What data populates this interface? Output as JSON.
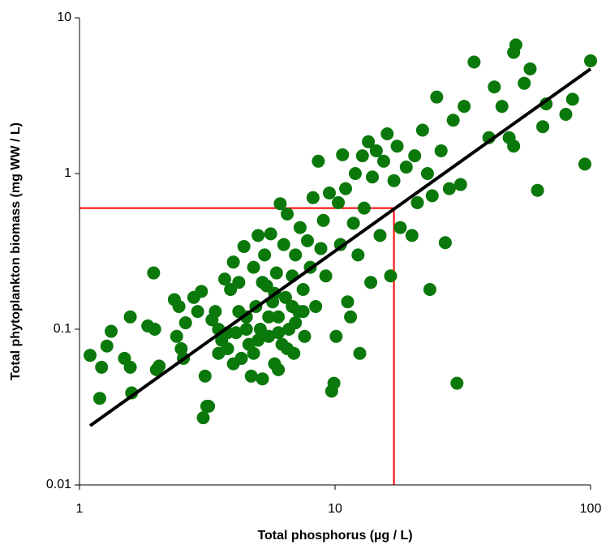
{
  "chart_data": {
    "type": "scatter",
    "x_label": "Total phosphorus (µg / L)",
    "y_label": "Total phytoplankton biomass (mg WW / L)",
    "log_x": true,
    "log_y": true,
    "xlim": [
      1,
      100
    ],
    "ylim": [
      0.01,
      10
    ],
    "xticks": [
      1,
      10,
      100
    ],
    "yticks": [
      0.01,
      0.1,
      1,
      10
    ],
    "color": "#0b780b",
    "x": [
      1.1,
      1.2,
      1.22,
      1.28,
      1.33,
      1.5,
      1.58,
      1.58,
      1.6,
      1.85,
      1.95,
      1.97,
      2.0,
      2.05,
      2.35,
      2.4,
      2.45,
      2.5,
      2.55,
      2.6,
      2.8,
      2.9,
      3.0,
      3.05,
      3.1,
      3.15,
      3.2,
      3.3,
      3.4,
      3.5,
      3.6,
      3.7,
      3.8,
      3.9,
      4.0,
      4.1,
      4.2,
      4.3,
      4.4,
      4.5,
      4.6,
      4.7,
      4.8,
      4.9,
      5.0,
      5.1,
      5.2,
      5.3,
      5.4,
      5.5,
      5.6,
      5.7,
      5.8,
      5.9,
      6.0,
      6.1,
      6.2,
      6.3,
      6.4,
      6.5,
      6.6,
      6.8,
      6.9,
      7.0,
      7.2,
      7.3,
      7.5,
      7.6,
      7.8,
      8.0,
      8.2,
      8.4,
      8.6,
      8.8,
      9.0,
      9.2,
      9.5,
      9.7,
      9.9,
      10.1,
      10.3,
      10.5,
      10.7,
      11.0,
      11.2,
      11.5,
      11.8,
      12.0,
      12.3,
      12.5,
      12.8,
      13.0,
      13.5,
      13.8,
      14.0,
      14.5,
      15.0,
      15.5,
      16.0,
      16.5,
      17.0,
      17.5,
      18.0,
      19.0,
      20.0,
      20.5,
      21.0,
      22.0,
      23.0,
      23.5,
      24.0,
      25.0,
      26.0,
      27.0,
      28.0,
      29.0,
      30.0,
      31.0,
      32.0,
      35.0,
      40.0,
      42.0,
      45.0,
      48.0,
      50.0,
      51.0,
      50.0,
      55.0,
      58.0,
      62.0,
      65.0,
      67.0,
      80.0,
      85.0,
      95.0,
      100.0,
      3.5,
      4.0,
      4.5,
      5.0,
      5.5,
      6.0,
      6.5,
      7.0,
      4.2,
      5.8,
      6.8,
      3.8,
      6.0,
      7.5,
      5.2,
      4.8
    ],
    "values": [
      0.068,
      0.036,
      0.057,
      0.078,
      0.097,
      0.065,
      0.12,
      0.057,
      0.039,
      0.105,
      0.23,
      0.1,
      0.055,
      0.058,
      0.155,
      0.09,
      0.14,
      0.075,
      0.065,
      0.11,
      0.16,
      0.13,
      0.175,
      0.027,
      0.05,
      0.032,
      0.032,
      0.115,
      0.13,
      0.1,
      0.085,
      0.21,
      0.075,
      0.18,
      0.27,
      0.095,
      0.2,
      0.065,
      0.34,
      0.12,
      0.08,
      0.05,
      0.25,
      0.14,
      0.4,
      0.1,
      0.048,
      0.3,
      0.19,
      0.09,
      0.41,
      0.15,
      0.06,
      0.23,
      0.12,
      0.64,
      0.08,
      0.35,
      0.16,
      0.55,
      0.1,
      0.22,
      0.07,
      0.3,
      0.13,
      0.45,
      0.18,
      0.09,
      0.37,
      0.25,
      0.7,
      0.14,
      1.2,
      0.33,
      0.5,
      0.22,
      0.75,
      0.04,
      0.045,
      0.09,
      0.65,
      0.35,
      1.32,
      0.8,
      0.15,
      0.12,
      0.48,
      1.0,
      0.3,
      0.07,
      1.3,
      0.6,
      1.6,
      0.2,
      0.95,
      1.4,
      0.4,
      1.2,
      1.8,
      0.22,
      0.9,
      1.5,
      0.45,
      1.1,
      0.4,
      1.3,
      0.65,
      1.9,
      1.0,
      0.18,
      0.72,
      3.1,
      1.4,
      0.36,
      0.8,
      2.2,
      0.045,
      0.85,
      2.7,
      5.2,
      1.7,
      3.6,
      2.7,
      1.7,
      6.0,
      6.7,
      1.5,
      3.8,
      4.7,
      0.78,
      2.0,
      2.8,
      2.4,
      3.0,
      1.15,
      5.3,
      0.07,
      0.06,
      0.1,
      0.085,
      0.12,
      0.095,
      0.075,
      0.11,
      0.13,
      0.17,
      0.14,
      0.095,
      0.055,
      0.13,
      0.2,
      0.07
    ],
    "fit_line": {
      "x": [
        1.1,
        100
      ],
      "values": [
        0.024,
        4.7
      ],
      "color": "#000000"
    },
    "reference": {
      "x": 17,
      "y": 0.6,
      "color": "#ff0000"
    }
  }
}
